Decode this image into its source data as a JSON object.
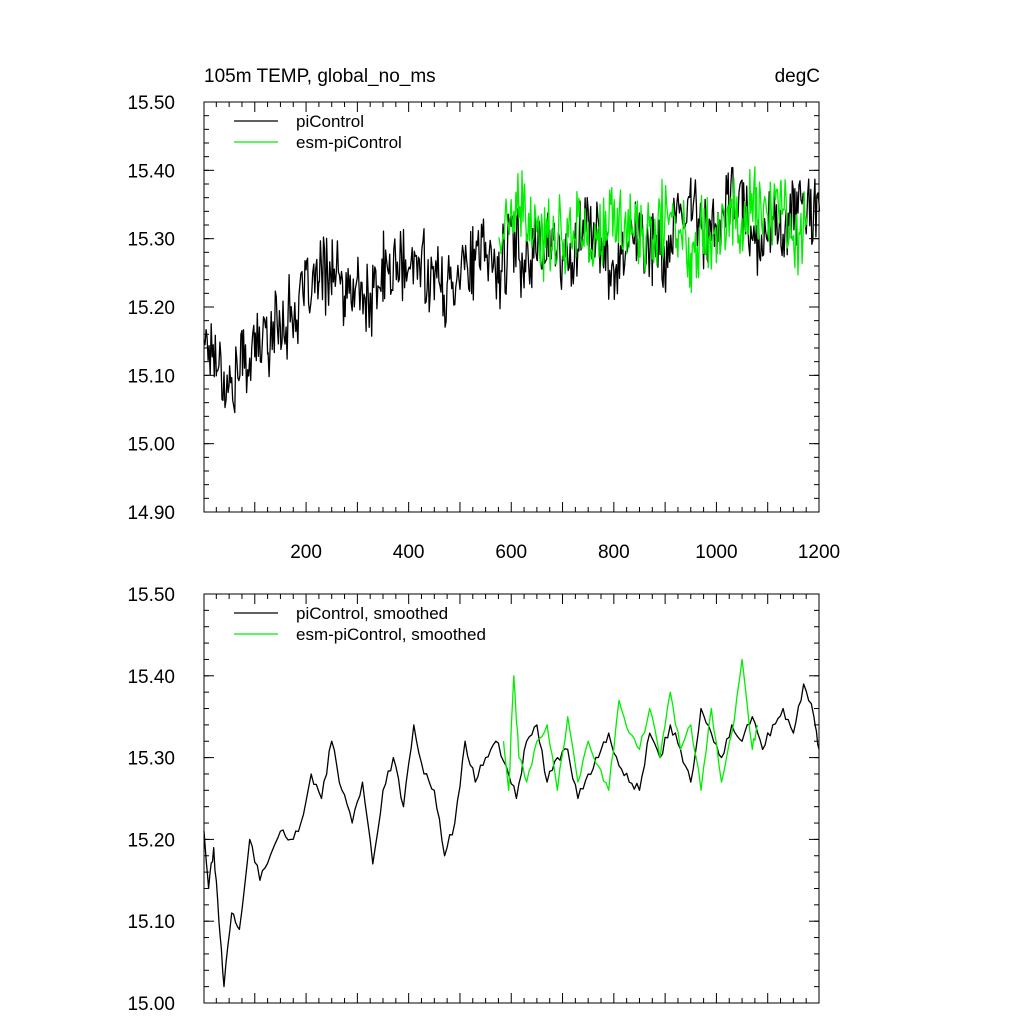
{
  "figure": {
    "title_left": "105m TEMP, global_no_ms",
    "title_right": "degC"
  },
  "chart_data": [
    {
      "type": "line",
      "panel": "top",
      "title": "105m TEMP, global_no_ms",
      "units": "degC",
      "xlabel": "",
      "ylabel": "",
      "xlim": [
        1,
        1200
      ],
      "ylim": [
        14.9,
        15.5
      ],
      "xticks": [
        200,
        400,
        600,
        800,
        1000,
        1200
      ],
      "xtick_labels": [
        "200",
        "400",
        "600",
        "800",
        "1000",
        "1200"
      ],
      "yticks": [
        14.9,
        15.0,
        15.1,
        15.2,
        15.3,
        15.4,
        15.5
      ],
      "ytick_labels": [
        "14.90",
        "15.00",
        "15.10",
        "15.20",
        "15.30",
        "15.40",
        "15.50"
      ],
      "legend_position": "top-left",
      "series": [
        {
          "name": "piControl",
          "color": "#000000",
          "x_start": 1,
          "x_step": 25,
          "values": [
            15.16,
            15.13,
            15.08,
            15.12,
            15.14,
            15.16,
            15.18,
            15.19,
            15.22,
            15.24,
            15.26,
            15.21,
            15.23,
            15.2,
            15.25,
            15.26,
            15.25,
            15.27,
            15.24,
            15.22,
            15.27,
            15.26,
            15.28,
            15.25,
            15.3,
            15.27,
            15.29,
            15.3,
            15.26,
            15.29,
            15.33,
            15.28,
            15.25,
            15.31,
            15.3,
            15.29,
            15.27,
            15.32,
            15.35,
            15.32,
            15.3,
            15.36,
            15.34,
            15.29,
            15.33,
            15.31,
            15.35,
            15.33,
            15.34
          ]
        },
        {
          "name": "esm-piControl",
          "color": "#00ee00",
          "x_start": 576,
          "x_step": 25,
          "values": [
            15.3,
            15.33,
            15.34,
            15.29,
            15.31,
            15.3,
            15.33,
            15.29,
            15.3,
            15.33,
            15.32,
            15.31,
            15.29,
            15.34,
            15.31,
            15.28,
            15.33,
            15.3,
            15.34,
            15.32,
            15.36,
            15.33,
            15.35,
            15.31,
            15.32
          ]
        }
      ]
    },
    {
      "type": "line",
      "panel": "bottom",
      "title": "",
      "xlabel": "",
      "ylabel": "",
      "xlim": [
        1,
        1200
      ],
      "ylim": [
        15.0,
        15.5
      ],
      "xticks": [
        200,
        400,
        600,
        800,
        1000,
        1200
      ],
      "yticks": [
        15.0,
        15.1,
        15.2,
        15.3,
        15.4,
        15.5
      ],
      "ytick_labels": [
        "15.00",
        "15.10",
        "15.20",
        "15.30",
        "15.40",
        "15.50"
      ],
      "legend_position": "top-left",
      "series": [
        {
          "name": "piControl, smoothed",
          "color": "#000000",
          "x": [
            1,
            10,
            20,
            30,
            40,
            55,
            70,
            90,
            110,
            130,
            150,
            170,
            190,
            210,
            230,
            250,
            270,
            290,
            310,
            330,
            350,
            370,
            390,
            410,
            430,
            450,
            470,
            490,
            510,
            530,
            550,
            570,
            590,
            610,
            630,
            650,
            670,
            690,
            710,
            730,
            750,
            770,
            790,
            810,
            830,
            850,
            870,
            890,
            910,
            930,
            950,
            970,
            990,
            1010,
            1030,
            1050,
            1070,
            1090,
            1110,
            1130,
            1150,
            1170,
            1190,
            1200
          ],
          "values": [
            15.21,
            15.14,
            15.19,
            15.1,
            15.02,
            15.11,
            15.09,
            15.2,
            15.15,
            15.18,
            15.21,
            15.2,
            15.22,
            15.28,
            15.25,
            15.32,
            15.26,
            15.22,
            15.27,
            15.17,
            15.26,
            15.3,
            15.24,
            15.34,
            15.28,
            15.26,
            15.18,
            15.22,
            15.32,
            15.27,
            15.3,
            15.32,
            15.29,
            15.25,
            15.32,
            15.34,
            15.27,
            15.3,
            15.31,
            15.25,
            15.28,
            15.3,
            15.33,
            15.29,
            15.27,
            15.26,
            15.33,
            15.3,
            15.34,
            15.31,
            15.27,
            15.36,
            15.33,
            15.3,
            15.34,
            15.32,
            15.35,
            15.31,
            15.34,
            15.36,
            15.33,
            15.39,
            15.35,
            15.31
          ]
        },
        {
          "name": "esm-piControl, smoothed",
          "color": "#00ee00",
          "x": [
            585,
            595,
            605,
            615,
            630,
            650,
            670,
            690,
            710,
            730,
            750,
            770,
            790,
            810,
            830,
            850,
            870,
            890,
            910,
            930,
            950,
            970,
            990,
            1010,
            1030,
            1050,
            1070,
            1080
          ],
          "values": [
            15.32,
            15.26,
            15.4,
            15.3,
            15.27,
            15.32,
            15.34,
            15.26,
            15.35,
            15.27,
            15.32,
            15.29,
            15.26,
            15.37,
            15.33,
            15.31,
            15.36,
            15.3,
            15.38,
            15.31,
            15.34,
            15.26,
            15.36,
            15.27,
            15.33,
            15.42,
            15.31,
            15.34
          ]
        }
      ]
    }
  ]
}
